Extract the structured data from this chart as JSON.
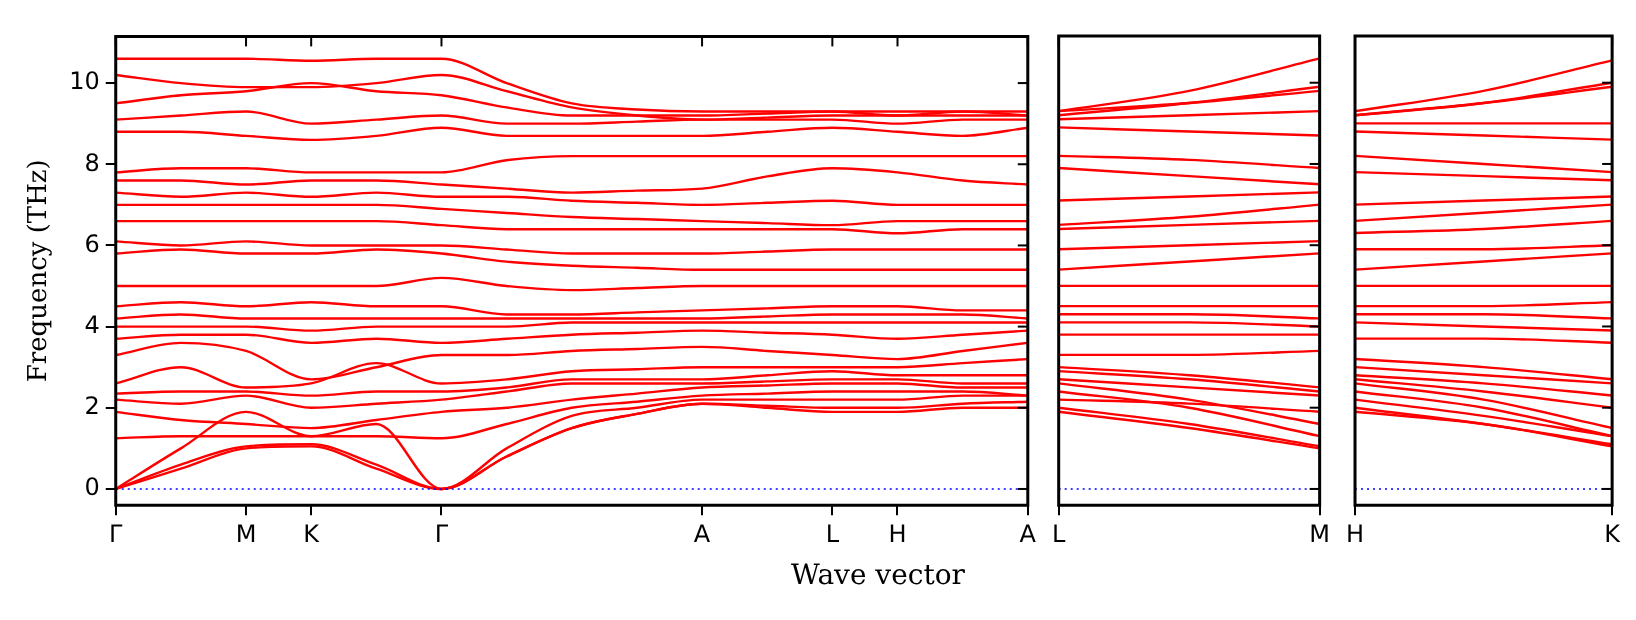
{
  "chart_data": [
    {
      "type": "line",
      "ylabel": "Frequency (THz)",
      "xlabel": "Wave vector",
      "ylim": [
        -0.4,
        11.15
      ],
      "categories": [
        "Γ",
        null,
        "M",
        "K",
        null,
        "Γ",
        null,
        null,
        null,
        "A",
        null,
        "L",
        "H",
        null,
        "A"
      ],
      "yticks": [
        0,
        2,
        4,
        6,
        8,
        10
      ],
      "grid": false,
      "legend": false,
      "ref_lines": [
        {
          "axis": "y",
          "value": 0,
          "color": "#0000ff",
          "line_style": "dotted"
        }
      ],
      "series": [
        {
          "color": "#ff0000",
          "values": [
            0,
            0.5,
            1.0,
            1.05,
            0.5,
            0,
            0.8,
            1.5,
            1.85,
            2.1,
            2.0,
            1.9,
            1.9,
            2.0,
            2.0
          ]
        },
        {
          "color": "#ff0000",
          "values": [
            0,
            0.6,
            1.05,
            1.1,
            0.6,
            0,
            0.8,
            1.5,
            1.85,
            2.1,
            2.05,
            2.0,
            2.0,
            2.1,
            2.15
          ]
        },
        {
          "color": "#ff0000",
          "values": [
            0,
            1.0,
            1.9,
            1.3,
            1.6,
            0,
            1.0,
            1.8,
            2.0,
            2.2,
            2.2,
            2.2,
            2.2,
            2.3,
            2.3
          ]
        },
        {
          "color": "#ff0000",
          "values": [
            1.25,
            1.3,
            1.3,
            1.3,
            1.3,
            1.25,
            1.6,
            2.0,
            2.15,
            2.3,
            2.35,
            2.4,
            2.4,
            2.4,
            2.3
          ]
        },
        {
          "color": "#ff0000",
          "values": [
            1.9,
            1.7,
            1.6,
            1.5,
            1.7,
            1.9,
            2.0,
            2.2,
            2.35,
            2.5,
            2.55,
            2.6,
            2.6,
            2.5,
            2.5
          ]
        },
        {
          "color": "#ff0000",
          "values": [
            2.2,
            2.1,
            2.3,
            2.0,
            2.1,
            2.2,
            2.4,
            2.6,
            2.6,
            2.6,
            2.65,
            2.7,
            2.7,
            2.6,
            2.6
          ]
        },
        {
          "color": "#ff0000",
          "values": [
            2.35,
            2.4,
            2.4,
            2.3,
            2.4,
            2.4,
            2.5,
            2.7,
            2.7,
            2.7,
            2.8,
            2.9,
            2.8,
            2.8,
            2.8
          ]
        },
        {
          "color": "#ff0000",
          "values": [
            2.6,
            3.0,
            2.5,
            2.6,
            3.1,
            2.6,
            2.7,
            2.9,
            2.95,
            3.0,
            3.0,
            3.0,
            3.0,
            3.1,
            3.2
          ]
        },
        {
          "color": "#ff0000",
          "values": [
            3.3,
            3.6,
            3.4,
            2.7,
            3.0,
            3.3,
            3.3,
            3.4,
            3.45,
            3.5,
            3.4,
            3.3,
            3.2,
            3.4,
            3.6
          ]
        },
        {
          "color": "#ff0000",
          "values": [
            3.7,
            3.8,
            3.8,
            3.6,
            3.7,
            3.6,
            3.7,
            3.8,
            3.85,
            3.9,
            3.85,
            3.8,
            3.7,
            3.8,
            3.9
          ]
        },
        {
          "color": "#ff0000",
          "values": [
            4.0,
            4.0,
            4.0,
            3.9,
            4.0,
            4.0,
            4.0,
            4.1,
            4.1,
            4.1,
            4.1,
            4.1,
            4.1,
            4.1,
            4.1
          ]
        },
        {
          "color": "#ff0000",
          "values": [
            4.2,
            4.3,
            4.2,
            4.2,
            4.2,
            4.2,
            4.2,
            4.2,
            4.2,
            4.2,
            4.25,
            4.3,
            4.3,
            4.3,
            4.2
          ]
        },
        {
          "color": "#ff0000",
          "values": [
            4.5,
            4.6,
            4.5,
            4.6,
            4.5,
            4.5,
            4.3,
            4.3,
            4.35,
            4.4,
            4.45,
            4.5,
            4.5,
            4.4,
            4.4
          ]
        },
        {
          "color": "#ff0000",
          "values": [
            5.0,
            5.0,
            5.0,
            5.0,
            5.0,
            5.2,
            5.0,
            4.9,
            4.95,
            5.0,
            5.0,
            5.0,
            5.0,
            5.0,
            5.0
          ]
        },
        {
          "color": "#ff0000",
          "values": [
            5.8,
            5.9,
            5.8,
            5.8,
            5.9,
            5.8,
            5.6,
            5.5,
            5.45,
            5.4,
            5.4,
            5.4,
            5.4,
            5.4,
            5.4
          ]
        },
        {
          "color": "#ff0000",
          "values": [
            6.1,
            6.0,
            6.1,
            6.0,
            6.0,
            6.0,
            5.9,
            5.8,
            5.8,
            5.8,
            5.85,
            5.9,
            5.9,
            5.9,
            5.9
          ]
        },
        {
          "color": "#ff0000",
          "values": [
            6.6,
            6.6,
            6.6,
            6.6,
            6.6,
            6.5,
            6.4,
            6.4,
            6.4,
            6.4,
            6.4,
            6.4,
            6.3,
            6.4,
            6.4
          ]
        },
        {
          "color": "#ff0000",
          "values": [
            7.0,
            7.0,
            7.0,
            7.0,
            7.0,
            6.9,
            6.8,
            6.7,
            6.65,
            6.6,
            6.55,
            6.5,
            6.6,
            6.6,
            6.6
          ]
        },
        {
          "color": "#ff0000",
          "values": [
            7.3,
            7.2,
            7.3,
            7.2,
            7.3,
            7.2,
            7.2,
            7.1,
            7.05,
            7.0,
            7.05,
            7.1,
            7.0,
            7.0,
            7.0
          ]
        },
        {
          "color": "#ff0000",
          "values": [
            7.6,
            7.6,
            7.5,
            7.6,
            7.6,
            7.5,
            7.4,
            7.3,
            7.35,
            7.4,
            7.7,
            7.9,
            7.8,
            7.6,
            7.5
          ]
        },
        {
          "color": "#ff0000",
          "values": [
            7.8,
            7.9,
            7.9,
            7.8,
            7.8,
            7.8,
            8.1,
            8.2,
            8.2,
            8.2,
            8.2,
            8.2,
            8.2,
            8.2,
            8.2
          ]
        },
        {
          "color": "#ff0000",
          "values": [
            8.8,
            8.8,
            8.7,
            8.6,
            8.7,
            8.9,
            8.7,
            8.7,
            8.7,
            8.7,
            8.8,
            8.9,
            8.8,
            8.7,
            8.9
          ]
        },
        {
          "color": "#ff0000",
          "values": [
            9.1,
            9.2,
            9.3,
            9.0,
            9.1,
            9.2,
            9.0,
            9.0,
            9.05,
            9.1,
            9.1,
            9.1,
            9.0,
            9.1,
            9.1
          ]
        },
        {
          "color": "#ff0000",
          "values": [
            9.5,
            9.7,
            9.8,
            10.0,
            9.8,
            9.7,
            9.4,
            9.2,
            9.2,
            9.2,
            9.25,
            9.3,
            9.2,
            9.2,
            9.2
          ]
        },
        {
          "color": "#ff0000",
          "values": [
            10.2,
            10.0,
            9.9,
            9.9,
            10.0,
            10.2,
            9.8,
            9.4,
            9.2,
            9.1,
            9.15,
            9.2,
            9.2,
            9.3,
            9.3
          ]
        },
        {
          "color": "#ff0000",
          "values": [
            10.6,
            10.6,
            10.6,
            10.55,
            10.6,
            10.6,
            10.0,
            9.5,
            9.35,
            9.3,
            9.3,
            9.3,
            9.3,
            9.3,
            9.2
          ]
        }
      ]
    },
    {
      "type": "line",
      "ylim": [
        -0.4,
        11.15
      ],
      "categories": [
        "L",
        null,
        "M"
      ],
      "yticks": [
        0,
        2,
        4,
        6,
        8,
        10
      ],
      "tick_labels": "x",
      "grid": false,
      "legend": false,
      "ref_lines": [
        {
          "axis": "y",
          "value": 0,
          "color": "#0000ff",
          "line_style": "dotted"
        }
      ],
      "series": [
        {
          "color": "#ff0000",
          "values": [
            1.9,
            1.5,
            1.0
          ]
        },
        {
          "color": "#ff0000",
          "values": [
            2.0,
            1.6,
            1.05
          ]
        },
        {
          "color": "#ff0000",
          "values": [
            2.2,
            2.1,
            1.9
          ]
        },
        {
          "color": "#ff0000",
          "values": [
            2.4,
            2.0,
            1.3
          ]
        },
        {
          "color": "#ff0000",
          "values": [
            2.6,
            2.2,
            1.6
          ]
        },
        {
          "color": "#ff0000",
          "values": [
            2.7,
            2.5,
            2.3
          ]
        },
        {
          "color": "#ff0000",
          "values": [
            2.9,
            2.7,
            2.4
          ]
        },
        {
          "color": "#ff0000",
          "values": [
            3.0,
            2.8,
            2.5
          ]
        },
        {
          "color": "#ff0000",
          "values": [
            3.3,
            3.3,
            3.4
          ]
        },
        {
          "color": "#ff0000",
          "values": [
            3.8,
            3.8,
            3.8
          ]
        },
        {
          "color": "#ff0000",
          "values": [
            4.1,
            4.1,
            4.0
          ]
        },
        {
          "color": "#ff0000",
          "values": [
            4.3,
            4.3,
            4.2
          ]
        },
        {
          "color": "#ff0000",
          "values": [
            4.5,
            4.5,
            4.5
          ]
        },
        {
          "color": "#ff0000",
          "values": [
            5.0,
            5.0,
            5.0
          ]
        },
        {
          "color": "#ff0000",
          "values": [
            5.4,
            5.6,
            5.8
          ]
        },
        {
          "color": "#ff0000",
          "values": [
            5.9,
            6.0,
            6.1
          ]
        },
        {
          "color": "#ff0000",
          "values": [
            6.4,
            6.5,
            6.6
          ]
        },
        {
          "color": "#ff0000",
          "values": [
            6.5,
            6.7,
            7.0
          ]
        },
        {
          "color": "#ff0000",
          "values": [
            7.1,
            7.2,
            7.3
          ]
        },
        {
          "color": "#ff0000",
          "values": [
            7.9,
            7.7,
            7.5
          ]
        },
        {
          "color": "#ff0000",
          "values": [
            8.2,
            8.1,
            7.9
          ]
        },
        {
          "color": "#ff0000",
          "values": [
            8.9,
            8.8,
            8.7
          ]
        },
        {
          "color": "#ff0000",
          "values": [
            9.1,
            9.2,
            9.3
          ]
        },
        {
          "color": "#ff0000",
          "values": [
            9.3,
            9.5,
            9.8
          ]
        },
        {
          "color": "#ff0000",
          "values": [
            9.2,
            9.5,
            9.9
          ]
        },
        {
          "color": "#ff0000",
          "values": [
            9.3,
            9.8,
            10.6
          ]
        }
      ]
    },
    {
      "type": "line",
      "ylim": [
        -0.4,
        11.15
      ],
      "categories": [
        "H",
        null,
        "K"
      ],
      "yticks": [
        0,
        2,
        4,
        6,
        8,
        10
      ],
      "tick_labels": "x",
      "grid": false,
      "legend": false,
      "ref_lines": [
        {
          "axis": "y",
          "value": 0,
          "color": "#0000ff",
          "line_style": "dotted"
        }
      ],
      "series": [
        {
          "color": "#ff0000",
          "values": [
            1.9,
            1.6,
            1.05
          ]
        },
        {
          "color": "#ff0000",
          "values": [
            2.0,
            1.6,
            1.1
          ]
        },
        {
          "color": "#ff0000",
          "values": [
            2.2,
            1.8,
            1.3
          ]
        },
        {
          "color": "#ff0000",
          "values": [
            2.4,
            2.0,
            1.3
          ]
        },
        {
          "color": "#ff0000",
          "values": [
            2.6,
            2.2,
            1.5
          ]
        },
        {
          "color": "#ff0000",
          "values": [
            2.7,
            2.4,
            2.0
          ]
        },
        {
          "color": "#ff0000",
          "values": [
            2.8,
            2.6,
            2.3
          ]
        },
        {
          "color": "#ff0000",
          "values": [
            3.0,
            2.8,
            2.6
          ]
        },
        {
          "color": "#ff0000",
          "values": [
            3.2,
            3.0,
            2.7
          ]
        },
        {
          "color": "#ff0000",
          "values": [
            3.7,
            3.7,
            3.6
          ]
        },
        {
          "color": "#ff0000",
          "values": [
            4.1,
            4.0,
            3.9
          ]
        },
        {
          "color": "#ff0000",
          "values": [
            4.3,
            4.3,
            4.2
          ]
        },
        {
          "color": "#ff0000",
          "values": [
            4.5,
            4.5,
            4.6
          ]
        },
        {
          "color": "#ff0000",
          "values": [
            5.0,
            5.0,
            5.0
          ]
        },
        {
          "color": "#ff0000",
          "values": [
            5.4,
            5.6,
            5.8
          ]
        },
        {
          "color": "#ff0000",
          "values": [
            5.9,
            5.9,
            6.0
          ]
        },
        {
          "color": "#ff0000",
          "values": [
            6.3,
            6.4,
            6.6
          ]
        },
        {
          "color": "#ff0000",
          "values": [
            6.6,
            6.8,
            7.0
          ]
        },
        {
          "color": "#ff0000",
          "values": [
            7.0,
            7.1,
            7.2
          ]
        },
        {
          "color": "#ff0000",
          "values": [
            7.8,
            7.7,
            7.6
          ]
        },
        {
          "color": "#ff0000",
          "values": [
            8.2,
            8.0,
            7.8
          ]
        },
        {
          "color": "#ff0000",
          "values": [
            8.8,
            8.7,
            8.6
          ]
        },
        {
          "color": "#ff0000",
          "values": [
            9.0,
            9.0,
            9.0
          ]
        },
        {
          "color": "#ff0000",
          "values": [
            9.2,
            9.5,
            10.0
          ]
        },
        {
          "color": "#ff0000",
          "values": [
            9.2,
            9.5,
            9.9
          ]
        },
        {
          "color": "#ff0000",
          "values": [
            9.3,
            9.8,
            10.55
          ]
        }
      ]
    }
  ]
}
